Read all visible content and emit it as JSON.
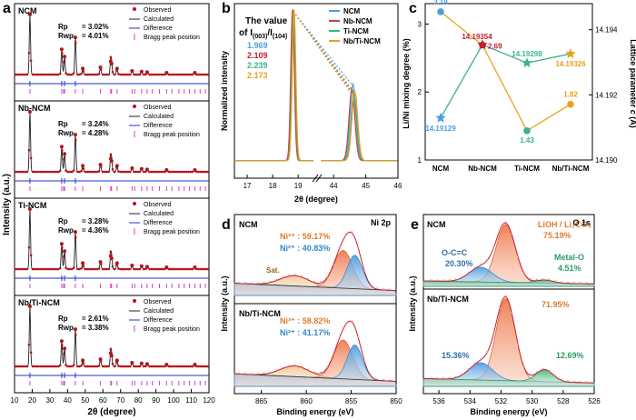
{
  "panels": {
    "a": {
      "letter": "a",
      "xlabel": "2θ (degree)",
      "ylabel": "Intensity (a.u.)",
      "xticks": [
        "10",
        "20",
        "30",
        "40",
        "50",
        "60",
        "70",
        "80",
        "90",
        "100",
        "110",
        "120"
      ],
      "legend": [
        "Observed",
        "Calculated",
        "Difference",
        "Bragg peak position"
      ],
      "rp_label": "Rp",
      "rwp_label": "Rwp",
      "samples": [
        {
          "name": "NCM",
          "rp": "= 3.02%",
          "rwp": "= 4.01%"
        },
        {
          "name": "Nb-NCM",
          "rp": "= 3.24%",
          "rwp": "= 4.28%"
        },
        {
          "name": "Ti-NCM",
          "rp": "= 3.28%",
          "rwp": "= 4.36%"
        },
        {
          "name": "Nb/Ti-NCM",
          "rp": "= 2.61%",
          "rwp": "= 3.38%"
        }
      ]
    },
    "b": {
      "letter": "b",
      "xlabel": "2θ (degree)",
      "ylabel": "Normalized intensity",
      "xticks": [
        "17",
        "18",
        "19",
        "44",
        "45",
        "46"
      ],
      "ratio_title_1": "The value",
      "ratio_title_2": "of I(003)/I(104)",
      "ratios": [
        {
          "value": "1.969",
          "color": "#4a9fe0"
        },
        {
          "value": "2.109",
          "color": "#c0202a"
        },
        {
          "value": "2.239",
          "color": "#3cb38a"
        },
        {
          "value": "2.173",
          "color": "#e8a21c"
        }
      ],
      "legend": [
        {
          "name": "NCM",
          "color": "#4a9fe0"
        },
        {
          "name": "Nb-NCM",
          "color": "#d0403a"
        },
        {
          "name": "Ti-NCM",
          "color": "#3cb38a"
        },
        {
          "name": "Nb/Ti-NCM",
          "color": "#e8a21c"
        }
      ]
    },
    "c": {
      "letter": "c",
      "ylabel_left": "Li/Ni mixing degree (%)",
      "ylabel_right": "Lattice parameter c (Å)",
      "left_ticks": [
        "1",
        "2",
        "3"
      ],
      "right_ticks": [
        "14.190",
        "14.192",
        "14.194"
      ]
    },
    "d": {
      "letter": "d",
      "element": "Ni 2p",
      "xlabel": "Binding energy (eV)",
      "ylabel": "Intensity (a.u.)",
      "xticks": [
        "865",
        "860",
        "855",
        "850"
      ],
      "satellite": "Sat.",
      "samples": [
        {
          "name": "NCM",
          "ni3": "Ni³⁺ : 59.17%",
          "ni2": "Ni²⁺ : 40.83%"
        },
        {
          "name": "Nb/Ti-NCM",
          "ni3": "Ni³⁺ : 58.82%",
          "ni2": "Ni²⁺ : 41.17%"
        }
      ]
    },
    "e": {
      "letter": "e",
      "element": "O 1s",
      "xlabel": "Binding energy (eV)",
      "ylabel": "Intensity (a.u.)",
      "xticks": [
        "536",
        "534",
        "532",
        "530",
        "528",
        "526"
      ],
      "samples": [
        {
          "name": "NCM",
          "oc_label": "O-C=C",
          "oc": "20.30%",
          "li_label": "LiOH / Li₂CO₃",
          "li": "75.19%",
          "metal_label": "Metal-O",
          "metal": "4.51%"
        },
        {
          "name": "Nb/Ti-NCM",
          "oc": "15.36%",
          "li": "71.95%",
          "metal": "12.69%"
        }
      ]
    }
  },
  "chart_data": [
    {
      "panel": "a",
      "type": "line",
      "xlabel": "2θ (degree)",
      "ylabel": "Intensity (a.u.)",
      "xlim": [
        10,
        120
      ],
      "series": [
        {
          "name": "Observed"
        },
        {
          "name": "Calculated"
        },
        {
          "name": "Difference"
        },
        {
          "name": "Bragg peak position"
        }
      ],
      "major_peaks_2theta": [
        18.7,
        36.7,
        38.3,
        44.4,
        48.6,
        58.6,
        64.4,
        64.9,
        68.0,
        76.5,
        81.9,
        85.0,
        96.0,
        112.0
      ],
      "fit_quality": [
        {
          "sample": "NCM",
          "Rp_percent": 3.02,
          "Rwp_percent": 4.01
        },
        {
          "sample": "Nb-NCM",
          "Rp_percent": 3.24,
          "Rwp_percent": 4.28
        },
        {
          "sample": "Ti-NCM",
          "Rp_percent": 3.28,
          "Rwp_percent": 4.36
        },
        {
          "sample": "Nb/Ti-NCM",
          "Rp_percent": 2.61,
          "Rwp_percent": 3.38
        }
      ]
    },
    {
      "panel": "b",
      "type": "line",
      "xlabel": "2θ (degree)",
      "ylabel": "Normalized intensity",
      "x_segments": [
        [
          16.5,
          19.6
        ],
        [
          43.6,
          46
        ]
      ],
      "peak_003_2theta": 18.8,
      "peak_104_2theta": 44.6,
      "series": [
        {
          "name": "NCM",
          "I003_I104": 1.969,
          "color": "#4a9fe0"
        },
        {
          "name": "Nb-NCM",
          "I003_I104": 2.109,
          "color": "#d0403a"
        },
        {
          "name": "Ti-NCM",
          "I003_I104": 2.239,
          "color": "#3cb38a"
        },
        {
          "name": "Nb/Ti-NCM",
          "I003_I104": 2.173,
          "color": "#e8a21c"
        }
      ]
    },
    {
      "panel": "c",
      "type": "line",
      "categories": [
        "NCM",
        "Nb-NCM",
        "Ti-NCM",
        "Nb/Ti-NCM"
      ],
      "ylabel_left": "Li/Ni mixing degree (%)",
      "ylabel_right": "Lattice parameter c (Å)",
      "ylim_left": [
        1,
        3.3
      ],
      "ylim_right": [
        14.19,
        14.1948
      ],
      "series": [
        {
          "axis": "left",
          "color": "#e8a21c",
          "values": [
            3.18,
            2.69,
            1.43,
            1.82
          ],
          "labels": [
            "3.18",
            "2.69",
            "1.43",
            "1.82"
          ],
          "label_colors": [
            "#4a9fe0",
            "#c0202a",
            "#3cb38a",
            "#e8a21c"
          ]
        },
        {
          "axis": "right",
          "color": "#3cb38a",
          "values": [
            14.19129,
            14.19354,
            14.19298,
            14.19326
          ],
          "labels": [
            "14.19129",
            "14.19354",
            "14.19298",
            "14.19326"
          ],
          "label_colors": [
            "#4a9fe0",
            "#c0202a",
            "#3cb38a",
            "#e8a21c"
          ]
        }
      ]
    },
    {
      "panel": "d",
      "type": "area",
      "xlabel": "Binding energy (eV)",
      "ylabel": "Intensity (a.u.)",
      "xlim": [
        868,
        850
      ],
      "components": [
        {
          "sample": "NCM",
          "Ni3_percent": 59.17,
          "Ni2_percent": 40.83
        },
        {
          "sample": "Nb/Ti-NCM",
          "Ni3_percent": 58.82,
          "Ni2_percent": 41.17
        }
      ],
      "peak_positions_eV": {
        "Ni3": 855.9,
        "Ni2": 854.6,
        "Sat": 861.3
      }
    },
    {
      "panel": "e",
      "type": "area",
      "xlabel": "Binding energy (eV)",
      "ylabel": "Intensity (a.u.)",
      "xlim": [
        537,
        526
      ],
      "components": [
        {
          "sample": "NCM",
          "O-C=C_percent": 20.3,
          "LiOH/Li2CO3_percent": 75.19,
          "Metal-O_percent": 4.51
        },
        {
          "sample": "Nb/Ti-NCM",
          "O-C=C_percent": 15.36,
          "LiOH/Li2CO3_percent": 71.95,
          "Metal-O_percent": 12.69
        }
      ],
      "peak_positions_eV": {
        "O-C=C": 533.3,
        "LiOH/Li2CO3": 531.7,
        "Metal-O": 529.2
      }
    }
  ]
}
